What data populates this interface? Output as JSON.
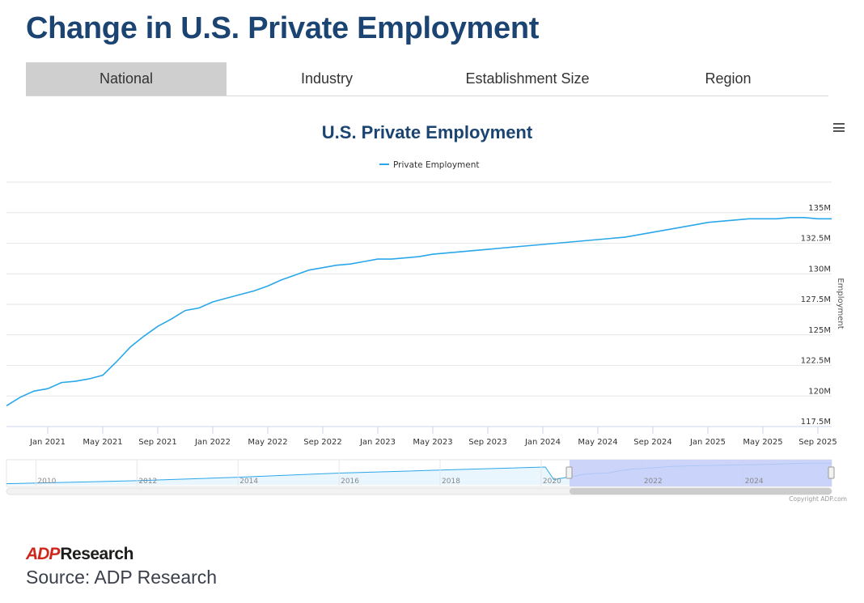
{
  "page": {
    "title": "Change in U.S. Private Employment",
    "source": "Source: ADP Research",
    "logo": {
      "mark": "ADP",
      "text": "Research"
    }
  },
  "tabs": [
    {
      "label": "National",
      "active": true
    },
    {
      "label": "Industry",
      "active": false
    },
    {
      "label": "Establishment Size",
      "active": false
    },
    {
      "label": "Region",
      "active": false
    }
  ],
  "menu_icon": "hamburger-icon",
  "colors": {
    "title": "#1b4472",
    "line": "#2aa7ea",
    "tab_active": "#cfcfcf",
    "navigator_mask": "#c4ccf8"
  },
  "chart_data": {
    "type": "line",
    "title": "U.S. Private Employment",
    "ylabel": "Employment",
    "ylim": [
      117.5,
      137.5
    ],
    "y_ticks": [
      {
        "value": 117.5,
        "label": "117.5M"
      },
      {
        "value": 120,
        "label": "120M"
      },
      {
        "value": 122.5,
        "label": "122.5M"
      },
      {
        "value": 125,
        "label": "125M"
      },
      {
        "value": 127.5,
        "label": "127.5M"
      },
      {
        "value": 130,
        "label": "130M"
      },
      {
        "value": 132.5,
        "label": "132.5M"
      },
      {
        "value": 135,
        "label": "135M"
      }
    ],
    "x_range": [
      "2020-10",
      "2025-10"
    ],
    "x_ticks": [
      "Jan 2021",
      "May 2021",
      "Sep 2021",
      "Jan 2022",
      "May 2022",
      "Sep 2022",
      "Jan 2023",
      "May 2023",
      "Sep 2023",
      "Jan 2024",
      "May 2024",
      "Sep 2024",
      "Jan 2025",
      "May 2025",
      "Sep 2025"
    ],
    "legend": "top-center",
    "series": [
      {
        "name": "Private Employment",
        "x": [
          "2020-10",
          "2020-11",
          "2020-12",
          "2021-01",
          "2021-02",
          "2021-03",
          "2021-04",
          "2021-05",
          "2021-06",
          "2021-07",
          "2021-08",
          "2021-09",
          "2021-10",
          "2021-11",
          "2021-12",
          "2022-01",
          "2022-02",
          "2022-03",
          "2022-04",
          "2022-05",
          "2022-06",
          "2022-07",
          "2022-08",
          "2022-09",
          "2022-10",
          "2022-11",
          "2022-12",
          "2023-01",
          "2023-02",
          "2023-03",
          "2023-04",
          "2023-05",
          "2023-06",
          "2023-07",
          "2023-08",
          "2023-09",
          "2023-10",
          "2023-11",
          "2023-12",
          "2024-01",
          "2024-02",
          "2024-03",
          "2024-04",
          "2024-05",
          "2024-06",
          "2024-07",
          "2024-08",
          "2024-09",
          "2024-10",
          "2024-11",
          "2024-12",
          "2025-01",
          "2025-02",
          "2025-03",
          "2025-04",
          "2025-05",
          "2025-06",
          "2025-07",
          "2025-08",
          "2025-09",
          "2025-10"
        ],
        "values": [
          119.2,
          119.9,
          120.4,
          120.6,
          121.1,
          121.2,
          121.4,
          121.7,
          122.8,
          124.0,
          124.9,
          125.7,
          126.3,
          127.0,
          127.2,
          127.7,
          128.0,
          128.3,
          128.6,
          129.0,
          129.5,
          129.9,
          130.3,
          130.5,
          130.7,
          130.8,
          131.0,
          131.2,
          131.2,
          131.3,
          131.4,
          131.6,
          131.7,
          131.8,
          131.9,
          132.0,
          132.1,
          132.2,
          132.3,
          132.4,
          132.5,
          132.6,
          132.7,
          132.8,
          132.9,
          133.0,
          133.2,
          133.4,
          133.6,
          133.8,
          134.0,
          134.2,
          134.3,
          134.4,
          134.5,
          134.5,
          134.5,
          134.6,
          134.6,
          134.5,
          134.5
        ]
      }
    ],
    "navigator": {
      "labels": [
        "2010",
        "2012",
        "2014",
        "2016",
        "2018",
        "2020",
        "2022",
        "2024"
      ],
      "selected_range": [
        "2020-10",
        "2025-10"
      ]
    },
    "credit": "Copyright ADP.com"
  }
}
